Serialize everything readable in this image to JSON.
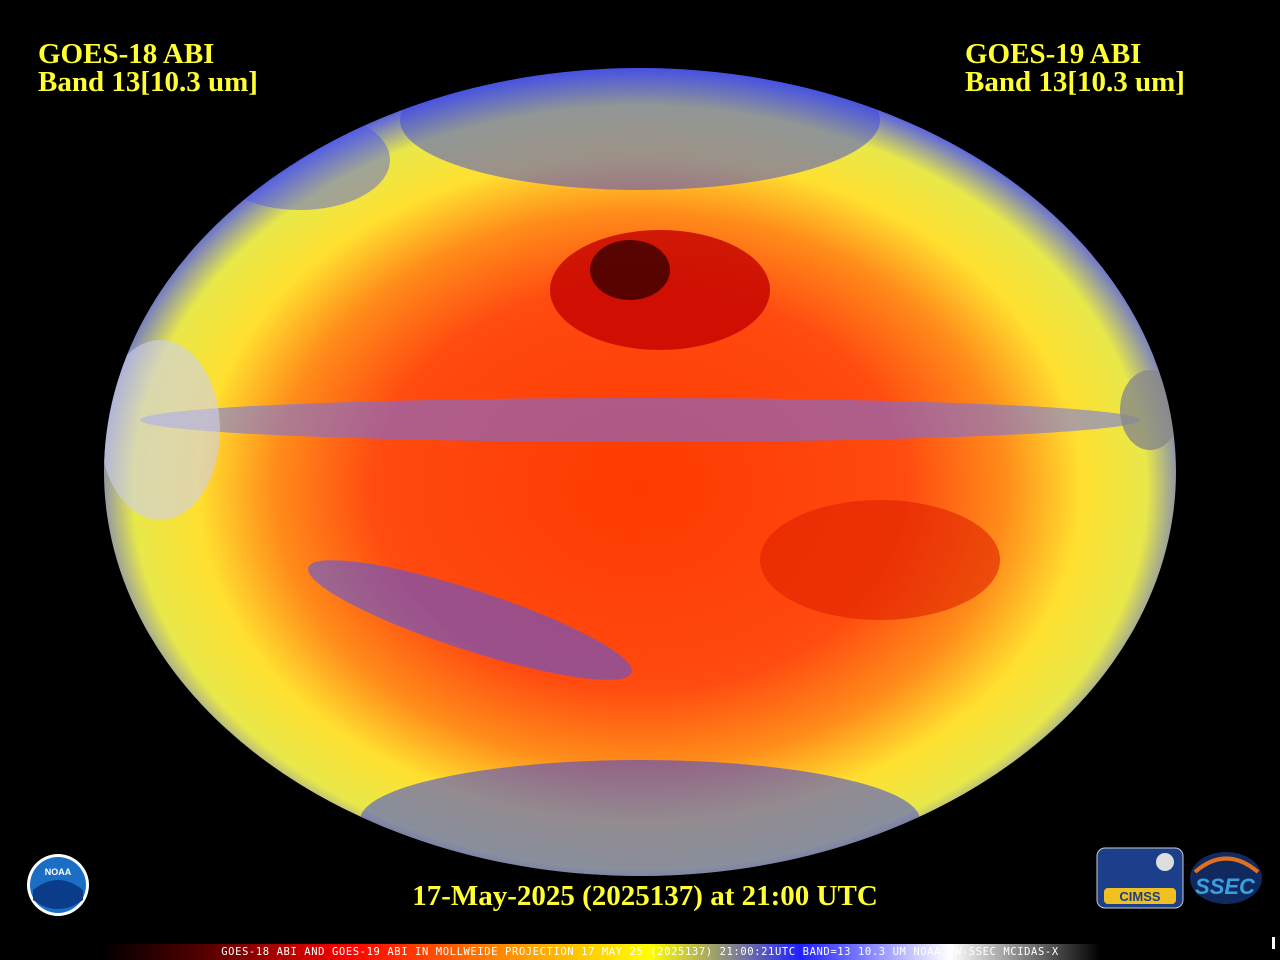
{
  "header": {
    "left": {
      "satellite": "GOES-18 ABI",
      "band": "Band 13[10.3 um]"
    },
    "right": {
      "satellite": "GOES-19 ABI",
      "band": "Band 13[10.3 um]"
    }
  },
  "timestamp": "17-May-2025 (2025137) at 21:00 UTC",
  "footer": "GOES-18 ABI AND GOES-19 ABI IN MOLLWEIDE PROJECTION 17 MAY 25 (2025137) 21:00:21UTC BAND=13 10.3 UM NOAA UW-SSEC MCIDAS-X",
  "logos": {
    "noaa": "NOAA",
    "cimss": "CIMSS",
    "ssec": "SSEC"
  }
}
